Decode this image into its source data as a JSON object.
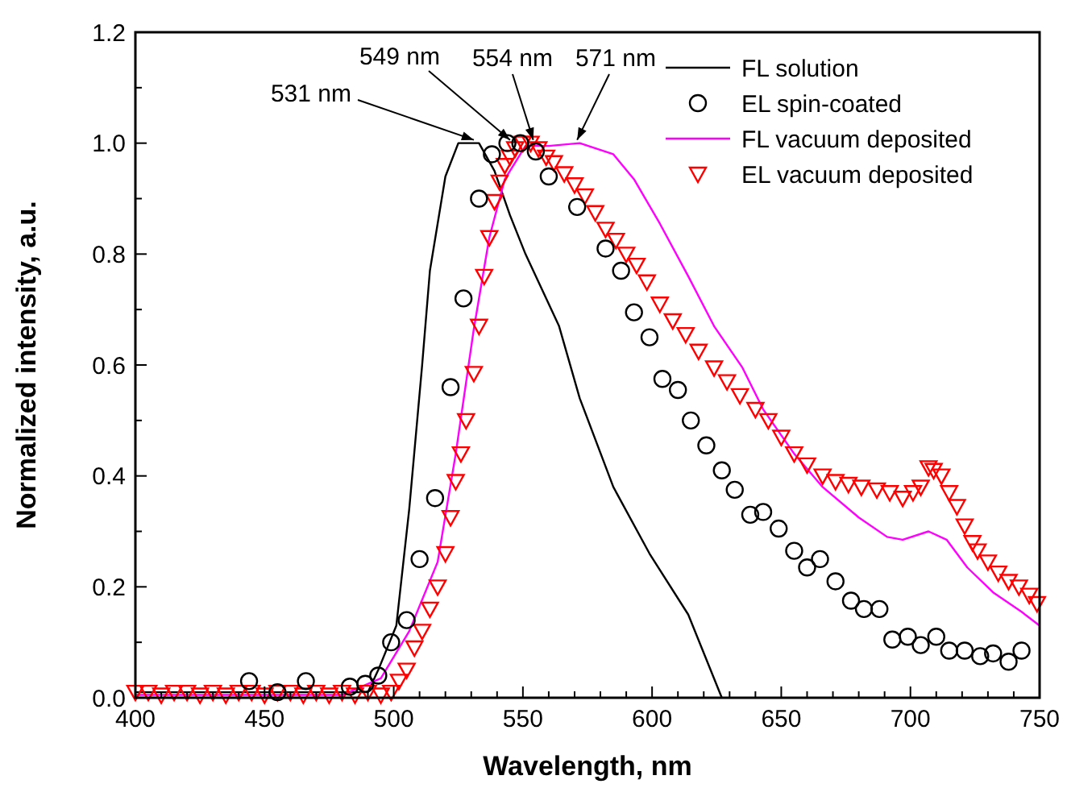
{
  "chart_data": {
    "type": "line",
    "xlabel": "Wavelength, nm",
    "ylabel": "Normalized intensity, a.u.",
    "xlim": [
      400,
      750
    ],
    "ylim": [
      0,
      1.2
    ],
    "xticks": [
      400,
      {
        "value": 410,
        "label": null
      },
      {
        "value": 420,
        "label": null
      },
      {
        "value": 430,
        "label": null
      },
      {
        "value": 440,
        "label": null
      },
      450,
      {
        "value": 460,
        "label": null
      },
      {
        "value": 470,
        "label": null
      },
      {
        "value": 480,
        "label": null
      },
      {
        "value": 490,
        "label": null
      },
      500,
      {
        "value": 510,
        "label": null
      },
      {
        "value": 520,
        "label": null
      },
      {
        "value": 530,
        "label": null
      },
      {
        "value": 540,
        "label": null
      },
      550,
      {
        "value": 560,
        "label": null
      },
      {
        "value": 570,
        "label": null
      },
      {
        "value": 580,
        "label": null
      },
      {
        "value": 590,
        "label": null
      },
      600,
      {
        "value": 610,
        "label": null
      },
      {
        "value": 620,
        "label": null
      },
      {
        "value": 630,
        "label": null
      },
      {
        "value": 640,
        "label": null
      },
      650,
      {
        "value": 660,
        "label": null
      },
      {
        "value": 670,
        "label": null
      },
      {
        "value": 680,
        "label": null
      },
      {
        "value": 690,
        "label": null
      },
      700,
      {
        "value": 710,
        "label": null
      },
      {
        "value": 720,
        "label": null
      },
      {
        "value": 730,
        "label": null
      },
      {
        "value": 740,
        "label": null
      },
      750
    ],
    "yticks": [
      {
        "value": 0,
        "label": "0.0"
      },
      {
        "value": 0.1,
        "label": null
      },
      {
        "value": 0.2,
        "label": "0.2"
      },
      {
        "value": 0.3,
        "label": null
      },
      {
        "value": 0.4,
        "label": "0.4"
      },
      {
        "value": 0.5,
        "label": null
      },
      {
        "value": 0.6,
        "label": "0.6"
      },
      {
        "value": 0.7,
        "label": null
      },
      {
        "value": 0.8,
        "label": "0.8"
      },
      {
        "value": 0.9,
        "label": null
      },
      {
        "value": 1.0,
        "label": "1.0"
      },
      {
        "value": 1.1,
        "label": null
      },
      {
        "value": 1.2,
        "label": "1.2"
      }
    ],
    "grid": false,
    "legend": "top right",
    "series": [
      {
        "name": "FL solution",
        "color": "#000000",
        "marker": "none",
        "x": [
          400,
          420,
          440,
          460,
          480,
          490,
          494,
          501,
          506,
          511,
          514,
          520,
          525,
          533,
          539,
          545,
          551,
          564,
          572,
          585,
          599,
          614,
          627
        ],
        "values": [
          0.01,
          0.01,
          0.01,
          0.01,
          0.01,
          0.01,
          0.05,
          0.13,
          0.34,
          0.6,
          0.77,
          0.94,
          1.0,
          1.0,
          0.95,
          0.87,
          0.8,
          0.67,
          0.54,
          0.38,
          0.26,
          0.15,
          0.0
        ]
      },
      {
        "name": "EL spin-coated",
        "type": "scatter",
        "color": "#000000",
        "marker": "circle",
        "x": [
          444,
          455,
          466,
          483,
          489,
          494,
          499,
          505,
          510,
          516,
          522,
          527,
          533,
          538,
          544,
          549,
          555,
          560,
          571,
          582,
          588,
          593,
          599,
          604,
          610,
          615,
          621,
          627,
          632,
          638,
          643,
          649,
          655,
          660,
          665,
          671,
          677,
          682,
          688,
          693,
          699,
          704,
          710,
          715,
          721,
          727,
          732,
          738,
          743
        ],
        "values": [
          0.03,
          0.01,
          0.03,
          0.02,
          0.025,
          0.04,
          0.1,
          0.14,
          0.25,
          0.36,
          0.56,
          0.72,
          0.9,
          0.98,
          1.0,
          1.0,
          0.985,
          0.94,
          0.885,
          0.81,
          0.77,
          0.695,
          0.65,
          0.575,
          0.555,
          0.5,
          0.455,
          0.41,
          0.375,
          0.33,
          0.335,
          0.305,
          0.265,
          0.235,
          0.25,
          0.21,
          0.175,
          0.16,
          0.16,
          0.105,
          0.11,
          0.095,
          0.11,
          0.085,
          0.085,
          0.075,
          0.08,
          0.065,
          0.085
        ]
      },
      {
        "name": "FL vacuum deposited",
        "color": "#ff00ff",
        "marker": "none",
        "x": [
          400,
          440,
          480,
          495,
          506,
          517,
          524,
          531,
          537,
          543,
          551,
          560,
          572,
          585,
          593,
          603,
          614,
          624,
          635,
          643,
          655,
          666,
          680,
          691,
          697,
          707,
          714,
          722,
          732,
          743,
          750
        ],
        "values": [
          0.005,
          0.005,
          0.005,
          0.035,
          0.12,
          0.245,
          0.44,
          0.665,
          0.83,
          0.935,
          0.995,
          0.995,
          1.0,
          0.98,
          0.935,
          0.855,
          0.76,
          0.67,
          0.595,
          0.52,
          0.44,
          0.38,
          0.325,
          0.29,
          0.285,
          0.3,
          0.285,
          0.235,
          0.19,
          0.155,
          0.13
        ]
      },
      {
        "name": "EL vacuum deposited",
        "type": "scatter",
        "color": "#ff0000",
        "marker": "triangle",
        "x": [
          400,
          405,
          410,
          415,
          420,
          425,
          430,
          435,
          440,
          445,
          450,
          455,
          460,
          465,
          470,
          475,
          480,
          485,
          490,
          495,
          499,
          502,
          505,
          508,
          511,
          514,
          517,
          520,
          522,
          524,
          526,
          528,
          531,
          533,
          535,
          537,
          539,
          541,
          543,
          545,
          547,
          550,
          553,
          556,
          559,
          562,
          566,
          570,
          574,
          578,
          582,
          586,
          590,
          594,
          598,
          603,
          608,
          613,
          618,
          624,
          629,
          634,
          640,
          645,
          650,
          655,
          660,
          666,
          671,
          676,
          681,
          687,
          692,
          697,
          701,
          704,
          707,
          709,
          712,
          715,
          718,
          721,
          724,
          726,
          730,
          734,
          738,
          742,
          746,
          749
        ],
        "values": [
          0.01,
          0.01,
          0.005,
          0.01,
          0.01,
          0.005,
          0.01,
          0.005,
          0.01,
          0.01,
          0.005,
          0.01,
          0.01,
          0.005,
          0.01,
          0.005,
          0.01,
          0.005,
          0.01,
          0.005,
          0.01,
          0.03,
          0.05,
          0.09,
          0.12,
          0.16,
          0.2,
          0.26,
          0.325,
          0.39,
          0.44,
          0.5,
          0.585,
          0.67,
          0.76,
          0.83,
          0.895,
          0.93,
          0.96,
          0.975,
          0.99,
          1.0,
          1.0,
          0.99,
          0.975,
          0.965,
          0.945,
          0.925,
          0.905,
          0.875,
          0.845,
          0.825,
          0.8,
          0.78,
          0.75,
          0.71,
          0.68,
          0.655,
          0.625,
          0.595,
          0.57,
          0.545,
          0.52,
          0.5,
          0.47,
          0.44,
          0.42,
          0.4,
          0.39,
          0.385,
          0.38,
          0.375,
          0.37,
          0.36,
          0.37,
          0.38,
          0.415,
          0.41,
          0.4,
          0.37,
          0.345,
          0.31,
          0.28,
          0.265,
          0.245,
          0.225,
          0.21,
          0.2,
          0.185,
          0.17
        ]
      }
    ],
    "annotations": [
      {
        "text": "531 nm",
        "x": 531,
        "y": 1.0
      },
      {
        "text": "549 nm",
        "x": 545,
        "y": 1.0
      },
      {
        "text": "554 nm",
        "x": 554,
        "y": 1.0
      },
      {
        "text": "571 nm",
        "x": 571,
        "y": 1.0
      }
    ]
  }
}
